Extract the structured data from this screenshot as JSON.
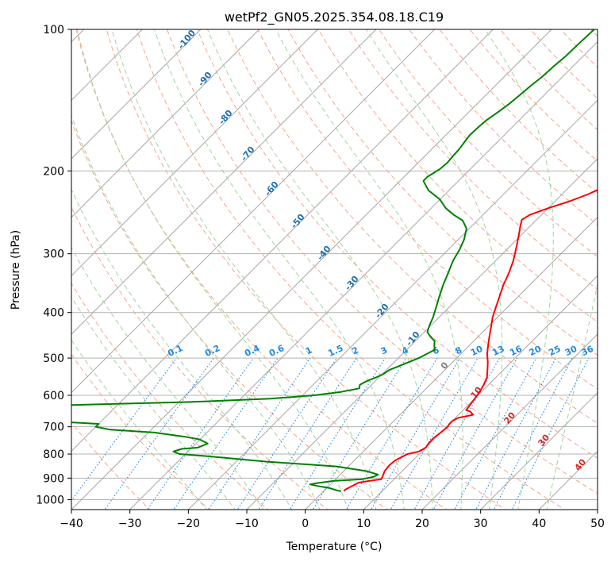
{
  "chart_data": {
    "type": "line",
    "title": "wetPf2_GN05.2025.354.08.18.C19",
    "xlabel": "Temperature (°C)",
    "ylabel": "Pressure (hPa)",
    "xlim": [
      -40,
      50
    ],
    "ylim": [
      1050,
      100
    ],
    "y_scale": "log",
    "x_ticks": [
      "−40",
      "−30",
      "−20",
      "−10",
      "0",
      "10",
      "20",
      "30",
      "40",
      "50"
    ],
    "y_ticks": [
      "100",
      "200",
      "300",
      "400",
      "500",
      "600",
      "700",
      "800",
      "900",
      "1000"
    ],
    "grid": true,
    "skew_degrees": 45,
    "series": [
      {
        "color": "#ff0000",
        "points": [
          [
            3.6,
            960
          ],
          [
            3.4,
            955
          ],
          [
            3.5,
            950
          ],
          [
            4.5,
            920
          ],
          [
            6.5,
            910
          ],
          [
            7.8,
            905
          ],
          [
            7.5,
            890
          ],
          [
            7,
            870
          ],
          [
            6.8,
            845
          ],
          [
            7,
            825
          ],
          [
            8,
            800
          ],
          [
            9.5,
            790
          ],
          [
            10,
            775
          ],
          [
            9.8,
            760
          ],
          [
            9.7,
            740
          ],
          [
            10,
            720
          ],
          [
            10.2,
            700
          ],
          [
            10,
            690
          ],
          [
            10,
            680
          ],
          [
            10.5,
            670
          ],
          [
            11.5,
            665
          ],
          [
            12.5,
            660
          ],
          [
            11.5,
            650
          ],
          [
            10.5,
            645
          ],
          [
            10.3,
            630
          ],
          [
            10,
            610
          ],
          [
            9.7,
            590
          ],
          [
            9.2,
            570
          ],
          [
            8.5,
            550
          ],
          [
            7.3,
            530
          ],
          [
            6,
            510
          ],
          [
            4.5,
            490
          ],
          [
            3.2,
            470
          ],
          [
            1.9,
            450
          ],
          [
            0.6,
            430
          ],
          [
            -0.8,
            410
          ],
          [
            -2,
            390
          ],
          [
            -3.2,
            370
          ],
          [
            -4.5,
            350
          ],
          [
            -5.6,
            330
          ],
          [
            -7,
            310
          ],
          [
            -8.8,
            290
          ],
          [
            -10.6,
            272
          ],
          [
            -11.7,
            262
          ],
          [
            -12.5,
            254
          ],
          [
            -12,
            248
          ],
          [
            -10,
            240
          ],
          [
            -7.5,
            232
          ],
          [
            -5.5,
            224
          ],
          [
            -4,
            216
          ],
          [
            -3,
            210
          ],
          [
            -2,
            202
          ],
          [
            -1.3,
            196
          ],
          [
            -0.5,
            190
          ],
          [
            0,
            184
          ],
          [
            0.8,
            178
          ],
          [
            1.6,
            172
          ],
          [
            2.6,
            166
          ],
          [
            3.3,
            160
          ],
          [
            4.3,
            154
          ],
          [
            5,
            148
          ],
          [
            5.6,
            142
          ],
          [
            6,
            136
          ],
          [
            6.5,
            130
          ],
          [
            7.3,
            124
          ],
          [
            8,
            118
          ],
          [
            8.8,
            112
          ],
          [
            9.8,
            106
          ],
          [
            11,
            100
          ]
        ]
      },
      {
        "color": "#008000",
        "points": [
          [
            3,
            960
          ],
          [
            2,
            955
          ],
          [
            0.5,
            945
          ],
          [
            -2,
            935
          ],
          [
            -3.5,
            928
          ],
          [
            -2.5,
            922
          ],
          [
            0,
            912
          ],
          [
            4.5,
            905
          ],
          [
            6,
            895
          ],
          [
            6.5,
            885
          ],
          [
            4,
            870
          ],
          [
            -2,
            850
          ],
          [
            -15,
            830
          ],
          [
            -25,
            810
          ],
          [
            -31,
            800
          ],
          [
            -32.5,
            790
          ],
          [
            -31.5,
            780
          ],
          [
            -29,
            775
          ],
          [
            -28,
            760
          ],
          [
            -30,
            745
          ],
          [
            -33,
            735
          ],
          [
            -39,
            720
          ],
          [
            -47,
            710
          ],
          [
            -50,
            700
          ],
          [
            -50,
            690
          ],
          [
            -60,
            680
          ],
          [
            -72,
            672
          ],
          [
            -90,
            668
          ],
          [
            -100,
            662
          ],
          [
            -90,
            640
          ],
          [
            -60,
            630
          ],
          [
            -38,
            620
          ],
          [
            -25,
            610
          ],
          [
            -18,
            600
          ],
          [
            -14,
            590
          ],
          [
            -11.5,
            580
          ],
          [
            -12,
            570
          ],
          [
            -11.5,
            560
          ],
          [
            -10.5,
            550
          ],
          [
            -9.8,
            540
          ],
          [
            -9.5,
            530
          ],
          [
            -8.5,
            520
          ],
          [
            -7.5,
            510
          ],
          [
            -6.5,
            500
          ],
          [
            -5.2,
            480
          ],
          [
            -6,
            470
          ],
          [
            -6.7,
            460
          ],
          [
            -8.2,
            450
          ],
          [
            -9.5,
            440
          ],
          [
            -10.3,
            425
          ],
          [
            -11,
            410
          ],
          [
            -12.2,
            390
          ],
          [
            -13.5,
            370
          ],
          [
            -14.8,
            350
          ],
          [
            -16,
            330
          ],
          [
            -17.3,
            310
          ],
          [
            -18,
            295
          ],
          [
            -19,
            280
          ],
          [
            -20.5,
            265
          ],
          [
            -22.5,
            255
          ],
          [
            -25,
            248
          ],
          [
            -27.5,
            240
          ],
          [
            -30,
            230
          ],
          [
            -33.5,
            220
          ],
          [
            -35.5,
            212
          ],
          [
            -36,
            210
          ],
          [
            -36,
            206
          ],
          [
            -35.6,
            202
          ],
          [
            -35.2,
            198
          ],
          [
            -35,
            192
          ],
          [
            -35.2,
            186
          ],
          [
            -35.3,
            180
          ],
          [
            -35.6,
            174
          ],
          [
            -35.9,
            168
          ],
          [
            -35.8,
            162
          ],
          [
            -35.6,
            156
          ],
          [
            -35,
            150
          ],
          [
            -34.5,
            144
          ],
          [
            -34.2,
            138
          ],
          [
            -33.9,
            132
          ],
          [
            -33.5,
            126
          ],
          [
            -33.3,
            120
          ],
          [
            -33,
            114
          ],
          [
            -32.9,
            108
          ],
          [
            -32.7,
            100
          ]
        ]
      }
    ],
    "dry_adiabat_labels": [
      "-100",
      "-90",
      "-80",
      "-70",
      "-60",
      "-50",
      "-40",
      "-30",
      "-20",
      "-10",
      "0",
      "10",
      "20",
      "30",
      "40"
    ],
    "mixing_ratio_labels": [
      "0.1",
      "0.2",
      "0.4",
      "0.6",
      "1",
      "1.5",
      "2",
      "3",
      "4",
      "6",
      "8",
      "10",
      "13",
      "16",
      "20",
      "25",
      "30",
      "36"
    ],
    "colors": {
      "temperature": "#ff0000",
      "dewpoint": "#008000",
      "dry_adiabat": "#f4a58a",
      "moist_adiabat": "#9fd49f",
      "mixing_ratio": "#1e88e5",
      "dry_label_cold": "#1f6fae",
      "dry_label_warm": "#d62728",
      "isotherm": "#a6a6a6",
      "isobar": "#b3b3b3"
    }
  }
}
